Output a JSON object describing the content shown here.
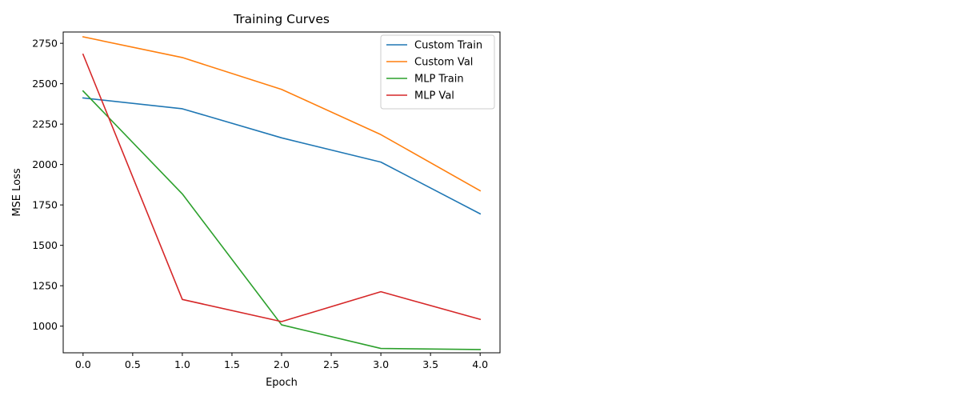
{
  "chart_data": {
    "type": "line",
    "title": "Training Curves",
    "xlabel": "Epoch",
    "ylabel": "MSE Loss",
    "x": [
      0,
      1,
      2,
      3,
      4
    ],
    "xlim": [
      -0.2,
      4.2
    ],
    "ylim": [
      835,
      2820
    ],
    "xticks": [
      0.0,
      0.5,
      1.0,
      1.5,
      2.0,
      2.5,
      3.0,
      3.5,
      4.0
    ],
    "xtick_labels": [
      "0.0",
      "0.5",
      "1.0",
      "1.5",
      "2.0",
      "2.5",
      "3.0",
      "3.5",
      "4.0"
    ],
    "yticks": [
      1000,
      1250,
      1500,
      1750,
      2000,
      2250,
      2500,
      2750
    ],
    "ytick_labels": [
      "1000",
      "1250",
      "1500",
      "1750",
      "2000",
      "2250",
      "2500",
      "2750"
    ],
    "grid": false,
    "legend_position": "top-right",
    "series": [
      {
        "name": "Custom Train",
        "color": "#1f77b4",
        "values": [
          2412,
          2345,
          2165,
          2015,
          1695
        ]
      },
      {
        "name": "Custom Val",
        "color": "#ff7f0e",
        "values": [
          2790,
          2662,
          2465,
          2185,
          1838
        ]
      },
      {
        "name": "MLP Train",
        "color": "#2ca02c",
        "values": [
          2455,
          1818,
          1008,
          862,
          855
        ]
      },
      {
        "name": "MLP Val",
        "color": "#d62728",
        "values": [
          2682,
          1165,
          1028,
          1213,
          1042
        ]
      }
    ]
  }
}
